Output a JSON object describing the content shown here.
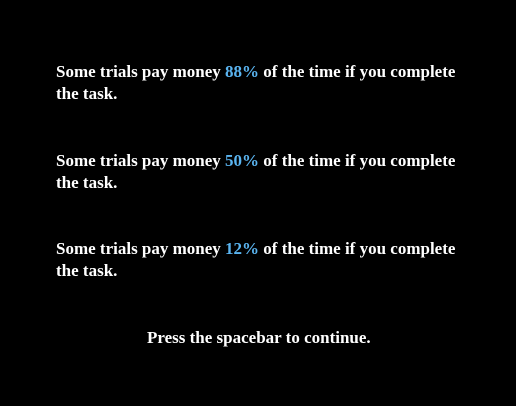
{
  "colors": {
    "background": "#000000",
    "text": "#ffffff",
    "accent": "#5ab4f0"
  },
  "paragraphs": [
    {
      "before": "Some trials pay money ",
      "percent": "88%",
      "after": " of the time if you complete the task."
    },
    {
      "before": "Some trials pay money ",
      "percent": "50%",
      "after": " of the time if you complete the task."
    },
    {
      "before": "Some trials pay money ",
      "percent": "12%",
      "after": " of the time if you complete the task."
    }
  ],
  "prompt": "Press the spacebar to continue."
}
